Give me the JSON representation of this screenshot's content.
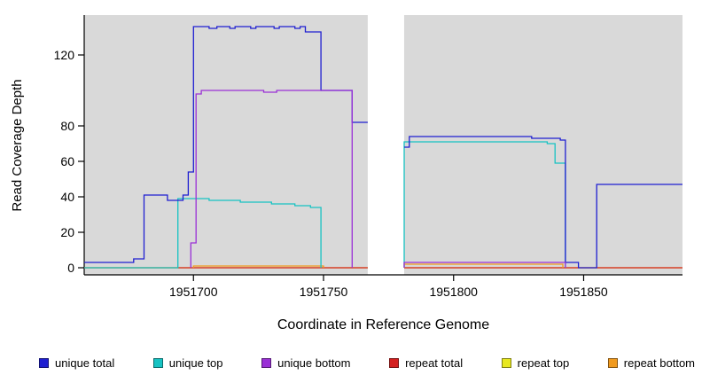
{
  "chart_data": {
    "type": "line",
    "subtype": "step-coverage",
    "title": "",
    "xlabel": "Coordinate in Reference Genome",
    "ylabel": "Read Coverage Depth",
    "xlim": [
      1951658,
      1951888
    ],
    "ylim": [
      0,
      142
    ],
    "x_ticks": [
      1951700,
      1951750,
      1951800,
      1951850
    ],
    "y_ticks": [
      0,
      20,
      40,
      60,
      80,
      120
    ],
    "grid": false,
    "legend_position": "bottom",
    "plot_bg": "#d9d9d9",
    "no_data_region": [
      1951767,
      1951781
    ],
    "series": [
      {
        "id": "unique-total",
        "label": "unique total",
        "color": "#1F1FD1",
        "z": 5,
        "segments": [
          [
            [
              1951658,
              3
            ],
            [
              1951677,
              3
            ],
            [
              1951677,
              5
            ],
            [
              1951681,
              5
            ],
            [
              1951681,
              41
            ],
            [
              1951690,
              41
            ],
            [
              1951690,
              38
            ],
            [
              1951696,
              38
            ],
            [
              1951696,
              41
            ],
            [
              1951698,
              41
            ],
            [
              1951698,
              54
            ],
            [
              1951700,
              54
            ],
            [
              1951700,
              136
            ],
            [
              1951706,
              136
            ],
            [
              1951706,
              135
            ],
            [
              1951709,
              135
            ],
            [
              1951709,
              136
            ],
            [
              1951714,
              136
            ],
            [
              1951714,
              135
            ],
            [
              1951716,
              135
            ],
            [
              1951716,
              136
            ],
            [
              1951722,
              136
            ],
            [
              1951722,
              135
            ],
            [
              1951724,
              135
            ],
            [
              1951724,
              136
            ],
            [
              1951731,
              136
            ],
            [
              1951731,
              135
            ],
            [
              1951733,
              135
            ],
            [
              1951733,
              136
            ],
            [
              1951739,
              136
            ],
            [
              1951739,
              135
            ],
            [
              1951741,
              135
            ],
            [
              1951741,
              136
            ],
            [
              1951743,
              136
            ],
            [
              1951743,
              133
            ],
            [
              1951749,
              133
            ],
            [
              1951749,
              100
            ],
            [
              1951761,
              100
            ],
            [
              1951761,
              82
            ],
            [
              1951767,
              82
            ]
          ],
          [
            [
              1951781,
              68
            ],
            [
              1951783,
              68
            ],
            [
              1951783,
              74
            ],
            [
              1951830,
              74
            ],
            [
              1951830,
              73
            ],
            [
              1951841,
              73
            ],
            [
              1951841,
              72
            ],
            [
              1951843,
              72
            ],
            [
              1951843,
              3
            ],
            [
              1951848,
              3
            ],
            [
              1951848,
              0
            ],
            [
              1951855,
              0
            ],
            [
              1951855,
              47
            ],
            [
              1951888,
              47
            ]
          ]
        ]
      },
      {
        "id": "unique-top",
        "label": "unique top",
        "color": "#17C3C3",
        "z": 4,
        "segments": [
          [
            [
              1951658,
              0
            ],
            [
              1951694,
              0
            ],
            [
              1951694,
              39
            ],
            [
              1951706,
              39
            ],
            [
              1951706,
              38
            ],
            [
              1951718,
              38
            ],
            [
              1951718,
              37
            ],
            [
              1951730,
              37
            ],
            [
              1951730,
              36
            ],
            [
              1951739,
              36
            ],
            [
              1951739,
              35
            ],
            [
              1951745,
              35
            ],
            [
              1951745,
              34
            ],
            [
              1951749,
              34
            ],
            [
              1951749,
              0
            ]
          ],
          [
            [
              1951781,
              0
            ],
            [
              1951781,
              71
            ],
            [
              1951836,
              71
            ],
            [
              1951836,
              70
            ],
            [
              1951839,
              70
            ],
            [
              1951839,
              59
            ],
            [
              1951843,
              59
            ],
            [
              1951843,
              0
            ]
          ]
        ]
      },
      {
        "id": "unique-bottom",
        "label": "unique bottom",
        "color": "#9A30D6",
        "z": 6,
        "segments": [
          [
            [
              1951699,
              0
            ],
            [
              1951699,
              14
            ],
            [
              1951701,
              14
            ],
            [
              1951701,
              98
            ],
            [
              1951703,
              98
            ],
            [
              1951703,
              100
            ],
            [
              1951727,
              100
            ],
            [
              1951727,
              99
            ],
            [
              1951732,
              99
            ],
            [
              1951732,
              100
            ],
            [
              1951761,
              100
            ],
            [
              1951761,
              0
            ]
          ],
          [
            [
              1951781,
              0
            ],
            [
              1951781,
              3
            ],
            [
              1951843,
              3
            ],
            [
              1951843,
              0
            ]
          ]
        ]
      },
      {
        "id": "repeat-total",
        "label": "repeat total",
        "color": "#D41F1F",
        "z": 2,
        "segments": [
          [
            [
              1951658,
              0
            ],
            [
              1951767,
              0
            ]
          ],
          [
            [
              1951781,
              0
            ],
            [
              1951888,
              0
            ]
          ]
        ]
      },
      {
        "id": "repeat-top",
        "label": "repeat top",
        "color": "#E8E81F",
        "z": 1,
        "segments": [
          [
            [
              1951658,
              0
            ],
            [
              1951767,
              0
            ]
          ],
          [
            [
              1951781,
              0
            ],
            [
              1951888,
              0
            ]
          ]
        ]
      },
      {
        "id": "repeat-bottom",
        "label": "repeat bottom",
        "color": "#F09A1F",
        "z": 3,
        "segments": [
          [
            [
              1951700,
              0
            ],
            [
              1951700,
              1
            ],
            [
              1951750,
              1
            ],
            [
              1951750,
              0
            ]
          ],
          [
            [
              1951781,
              0
            ],
            [
              1951781,
              2
            ],
            [
              1951842,
              2
            ],
            [
              1951842,
              0
            ]
          ]
        ]
      }
    ]
  }
}
